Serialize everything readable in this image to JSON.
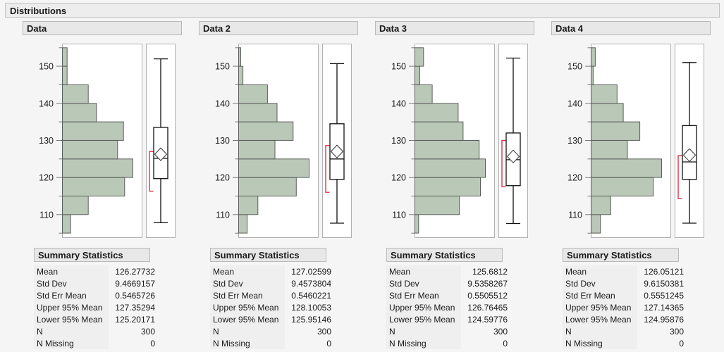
{
  "title": "Distributions",
  "summary_title": "Summary Statistics",
  "stat_labels": [
    "Mean",
    "Std Dev",
    "Std Err Mean",
    "Upper 95% Mean",
    "Lower 95% Mean",
    "N",
    "N Missing"
  ],
  "axis": {
    "range": [
      103.8,
      156
    ],
    "major_ticks": [
      110,
      120,
      130,
      140,
      150
    ],
    "minor_ticks": [
      105,
      115,
      125,
      135,
      145,
      155
    ]
  },
  "colors": {
    "bar_fill": "#bac8b8",
    "bar_stroke": "#5a5f5a",
    "frame_stroke": "#b0b0b0",
    "tick": "#777777",
    "box_stroke": "#111111",
    "bracket": "#d8354a",
    "header_bg": "#e8e8e8",
    "page_bg": "#f5f5f5"
  },
  "chart_data": [
    {
      "type": "histogram+boxplot",
      "panel": "Data",
      "orientation": "horizontal-bars-vertical-value-axis",
      "bin_start": 105,
      "bin_width": 5,
      "counts": [
        7,
        22,
        53,
        60,
        47,
        52,
        29,
        22,
        4,
        4
      ],
      "boxplot": {
        "whisker_low": 107.8,
        "q1": 119.7,
        "median": 125.2,
        "q3": 133.5,
        "whisker_high": 152.0,
        "mean": 126.27732,
        "shortest_half": [
          116.3,
          127.0
        ]
      },
      "stats": [
        "126.27732",
        "9.4669157",
        "0.5465726",
        "127.35294",
        "125.20171",
        "300",
        "0"
      ]
    },
    {
      "type": "histogram+boxplot",
      "panel": "Data 2",
      "orientation": "horizontal-bars-vertical-value-axis",
      "bin_start": 105,
      "bin_width": 5,
      "counts": [
        8,
        18,
        54,
        66,
        34,
        51,
        36,
        27,
        4,
        2
      ],
      "boxplot": {
        "whisker_low": 107.7,
        "q1": 119.5,
        "median": 125.0,
        "q3": 134.5,
        "whisker_high": 150.7,
        "mean": 127.02599,
        "shortest_half": [
          116.0,
          128.6
        ]
      },
      "stats": [
        "127.02599",
        "9.4573804",
        "0.5460221",
        "128.10053",
        "125.95146",
        "300",
        "0"
      ]
    },
    {
      "type": "histogram+boxplot",
      "panel": "Data 3",
      "orientation": "horizontal-bars-vertical-value-axis",
      "bin_start": 105,
      "bin_width": 5,
      "counts": [
        3,
        36,
        53,
        57,
        52,
        39,
        35,
        14,
        4,
        7
      ],
      "boxplot": {
        "whisker_low": 107.6,
        "q1": 117.8,
        "median": 124.8,
        "q3": 132.0,
        "whisker_high": 152.2,
        "mean": 125.6812,
        "shortest_half": [
          117.5,
          130.0
        ]
      },
      "stats": [
        "125.6812",
        "9.5358267",
        "0.5505512",
        "126.76465",
        "124.59776",
        "300",
        "0"
      ]
    },
    {
      "type": "histogram+boxplot",
      "panel": "Data 4",
      "orientation": "horizontal-bars-vertical-value-axis",
      "bin_start": 105,
      "bin_width": 5,
      "counts": [
        9,
        19,
        60,
        68,
        35,
        47,
        31,
        25,
        2,
        4
      ],
      "boxplot": {
        "whisker_low": 107.7,
        "q1": 119.5,
        "median": 124.2,
        "q3": 134.0,
        "whisker_high": 151.0,
        "mean": 126.05121,
        "shortest_half": [
          114.3,
          125.9
        ]
      },
      "stats": [
        "126.05121",
        "9.6150381",
        "0.5551245",
        "127.14365",
        "124.95876",
        "300",
        "0"
      ]
    }
  ]
}
